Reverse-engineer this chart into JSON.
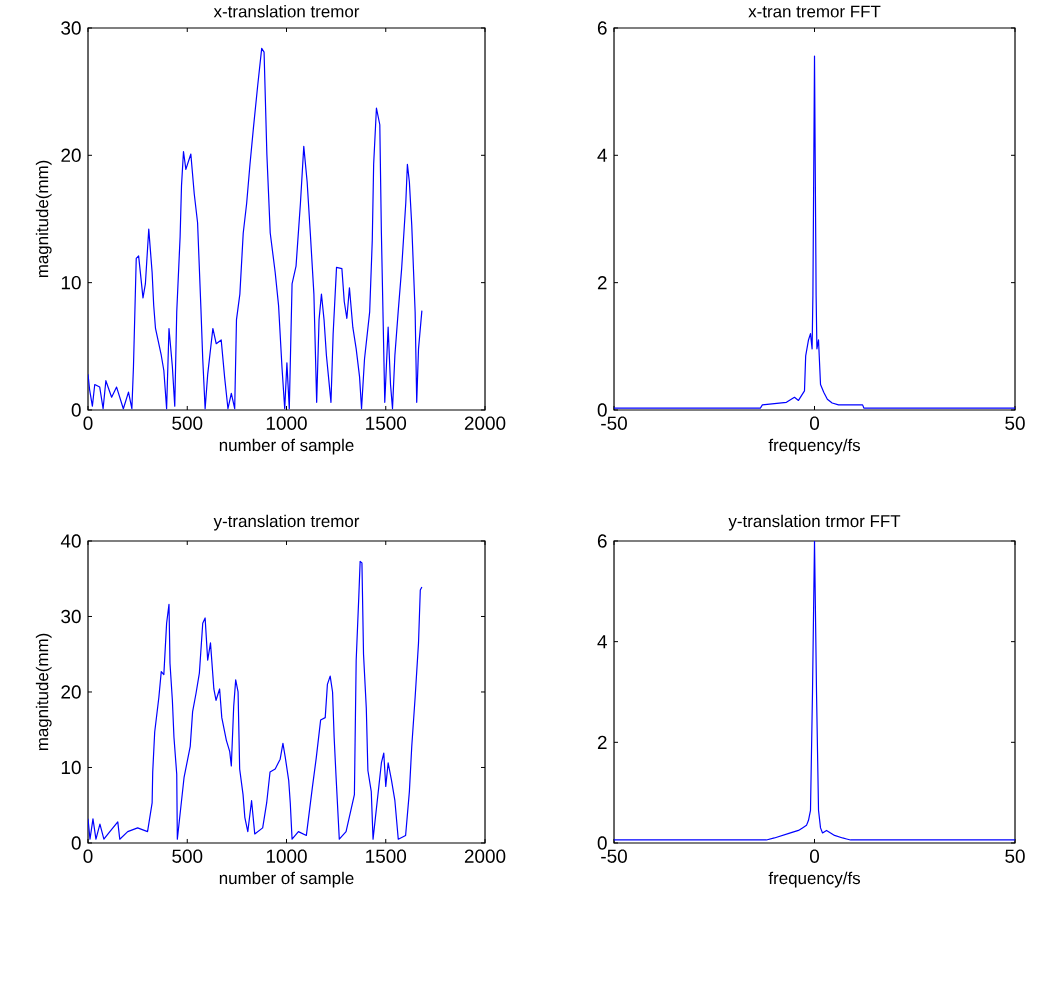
{
  "chart_data": [
    {
      "type": "line",
      "title": "x-translation tremor",
      "xlabel": "number of sample",
      "ylabel": "magnitude(mm)",
      "color": "#0000ff",
      "xlim": [
        0,
        2000
      ],
      "ylim": [
        0,
        30
      ],
      "xticks": [
        0,
        500,
        1000,
        1500,
        2000
      ],
      "yticks": [
        0,
        10,
        20,
        30
      ],
      "x": [
        0,
        8,
        22,
        34,
        59,
        76,
        90,
        119,
        144,
        178,
        204,
        221,
        229,
        243,
        255,
        277,
        289,
        306,
        323,
        331,
        340,
        369,
        382,
        396,
        408,
        425,
        437,
        447,
        464,
        471,
        481,
        493,
        518,
        535,
        552,
        569,
        578,
        590,
        603,
        629,
        646,
        671,
        688,
        705,
        722,
        739,
        748,
        765,
        782,
        799,
        816,
        833,
        855,
        875,
        887,
        901,
        918,
        943,
        960,
        977,
        991,
        1002,
        1014,
        1028,
        1048,
        1070,
        1087,
        1104,
        1121,
        1138,
        1152,
        1164,
        1176,
        1189,
        1201,
        1224,
        1235,
        1252,
        1279,
        1291,
        1304,
        1317,
        1334,
        1351,
        1368,
        1378,
        1393,
        1419,
        1432,
        1439,
        1453,
        1470,
        1478,
        1495,
        1512,
        1524,
        1534,
        1546,
        1563,
        1580,
        1601,
        1609,
        1619,
        1631,
        1648,
        1656,
        1665,
        1682
      ],
      "values": [
        2.8,
        1.6,
        0.3,
        2.0,
        1.8,
        0.1,
        2.3,
        1.0,
        1.8,
        0.1,
        1.4,
        0.1,
        3.4,
        11.9,
        12.1,
        8.8,
        9.9,
        14.2,
        10.8,
        8.2,
        6.4,
        4.3,
        3.1,
        0.1,
        6.4,
        3.4,
        0.3,
        7.7,
        13.6,
        17.6,
        20.3,
        18.9,
        20.1,
        17.0,
        14.7,
        7.9,
        4.0,
        0.1,
        2.8,
        6.4,
        5.2,
        5.5,
        2.6,
        0.1,
        1.3,
        0.1,
        7.1,
        9.1,
        13.9,
        16.2,
        19.3,
        22.1,
        25.5,
        28.4,
        28.1,
        20.1,
        13.9,
        10.8,
        8.2,
        3.4,
        0.1,
        3.7,
        0.1,
        9.9,
        11.3,
        16.2,
        20.7,
        17.9,
        13.6,
        9.1,
        0.6,
        7.1,
        9.1,
        7.1,
        4.3,
        0.6,
        6.0,
        11.2,
        11.1,
        8.5,
        7.2,
        9.6,
        6.5,
        4.8,
        2.6,
        0.1,
        4.0,
        7.7,
        13.3,
        19.3,
        23.7,
        22.4,
        13.9,
        0.6,
        6.5,
        2.0,
        0.1,
        4.3,
        7.8,
        11.1,
        16.3,
        19.3,
        17.9,
        14.5,
        7.7,
        0.6,
        4.8,
        7.8
      ]
    },
    {
      "type": "line",
      "title": "x-tran tremor FFT",
      "xlabel": "frequency/fs",
      "color": "#0000ff",
      "xlim": [
        -50,
        50
      ],
      "ylim": [
        0,
        6
      ],
      "xticks": [
        -50,
        0,
        50
      ],
      "yticks": [
        0,
        2,
        4,
        6
      ],
      "x": [
        -50,
        -13.5,
        -13,
        -10,
        -7,
        -5,
        -4,
        -3,
        -2.5,
        -2.2,
        -1.5,
        -1,
        -0.6,
        -0.4,
        0,
        0.4,
        0.6,
        1,
        1.5,
        2.3,
        3.2,
        4.4,
        6,
        12,
        12.3,
        50
      ],
      "values": [
        0.03,
        0.03,
        0.08,
        0.1,
        0.12,
        0.2,
        0.15,
        0.25,
        0.3,
        0.85,
        1.1,
        1.2,
        0.96,
        1.8,
        5.56,
        1.8,
        0.96,
        1.1,
        0.4,
        0.28,
        0.17,
        0.11,
        0.08,
        0.08,
        0.03,
        0.03
      ]
    },
    {
      "type": "line",
      "title": "y-translation tremor",
      "xlabel": "number of sample",
      "ylabel": "magnitude(mm)",
      "color": "#0000ff",
      "xlim": [
        0,
        2000
      ],
      "ylim": [
        0,
        40
      ],
      "xticks": [
        0,
        500,
        1000,
        1500,
        2000
      ],
      "yticks": [
        0,
        10,
        20,
        30,
        40
      ],
      "x": [
        0,
        10,
        25,
        40,
        60,
        80,
        110,
        150,
        160,
        200,
        250,
        300,
        323,
        326,
        336,
        357,
        369,
        382,
        396,
        408,
        413,
        425,
        433,
        447,
        450,
        484,
        515,
        527,
        544,
        561,
        578,
        590,
        603,
        617,
        634,
        645,
        663,
        674,
        697,
        714,
        722,
        734,
        744,
        756,
        764,
        781,
        790,
        805,
        824,
        840,
        880,
        900,
        917,
        943,
        968,
        982,
        994,
        1011,
        1019,
        1028,
        1060,
        1100,
        1130,
        1150,
        1172,
        1195,
        1206,
        1220,
        1232,
        1240,
        1249,
        1266,
        1300,
        1342,
        1351,
        1364,
        1371,
        1380,
        1388,
        1402,
        1410,
        1427,
        1436,
        1466,
        1478,
        1490,
        1500,
        1512,
        1529,
        1546,
        1563,
        1600,
        1619,
        1631,
        1648,
        1665,
        1674,
        1682
      ],
      "values": [
        3.2,
        0.5,
        3.2,
        0.5,
        2.5,
        0.5,
        1.5,
        2.8,
        0.5,
        1.5,
        2.0,
        1.5,
        5.3,
        9.4,
        14.7,
        19.3,
        22.7,
        22.3,
        29.1,
        31.6,
        23.8,
        18.9,
        14.0,
        9.1,
        0.5,
        8.7,
        12.8,
        17.4,
        19.8,
        22.5,
        29.1,
        29.8,
        24.2,
        26.5,
        20.4,
        18.9,
        20.4,
        16.6,
        13.6,
        12.1,
        10.2,
        18.1,
        21.6,
        20.0,
        9.8,
        6.4,
        3.4,
        1.5,
        5.6,
        1.2,
        2.0,
        5.3,
        9.4,
        9.8,
        11.1,
        13.2,
        11.3,
        8.3,
        5.3,
        0.5,
        1.5,
        1.0,
        7.3,
        11.3,
        16.3,
        16.6,
        21.0,
        22.1,
        20.0,
        14.0,
        9.1,
        0.5,
        1.5,
        6.4,
        24.2,
        32.5,
        37.3,
        37.1,
        25.0,
        17.8,
        9.6,
        6.8,
        0.5,
        7.7,
        10.6,
        11.9,
        7.5,
        10.6,
        8.3,
        5.6,
        0.5,
        1.0,
        6.8,
        12.8,
        19.3,
        26.5,
        33.5,
        33.9
      ]
    },
    {
      "type": "line",
      "title": "y-translation trmor FFT",
      "xlabel": "frequency/fs",
      "color": "#0000ff",
      "xlim": [
        -50,
        50
      ],
      "ylim": [
        0,
        6
      ],
      "xticks": [
        -50,
        0,
        50
      ],
      "yticks": [
        0,
        2,
        4,
        6
      ],
      "x": [
        -50,
        -12,
        -10,
        -8,
        -6,
        -4,
        -3,
        -2,
        -1.5,
        -1,
        -0.5,
        0,
        0.5,
        1,
        1.5,
        2,
        3,
        5,
        7,
        8,
        9,
        50
      ],
      "values": [
        0.06,
        0.06,
        0.1,
        0.15,
        0.2,
        0.25,
        0.3,
        0.35,
        0.45,
        0.65,
        3,
        6,
        3,
        0.65,
        0.3,
        0.2,
        0.25,
        0.15,
        0.1,
        0.08,
        0.06,
        0.06
      ]
    }
  ]
}
